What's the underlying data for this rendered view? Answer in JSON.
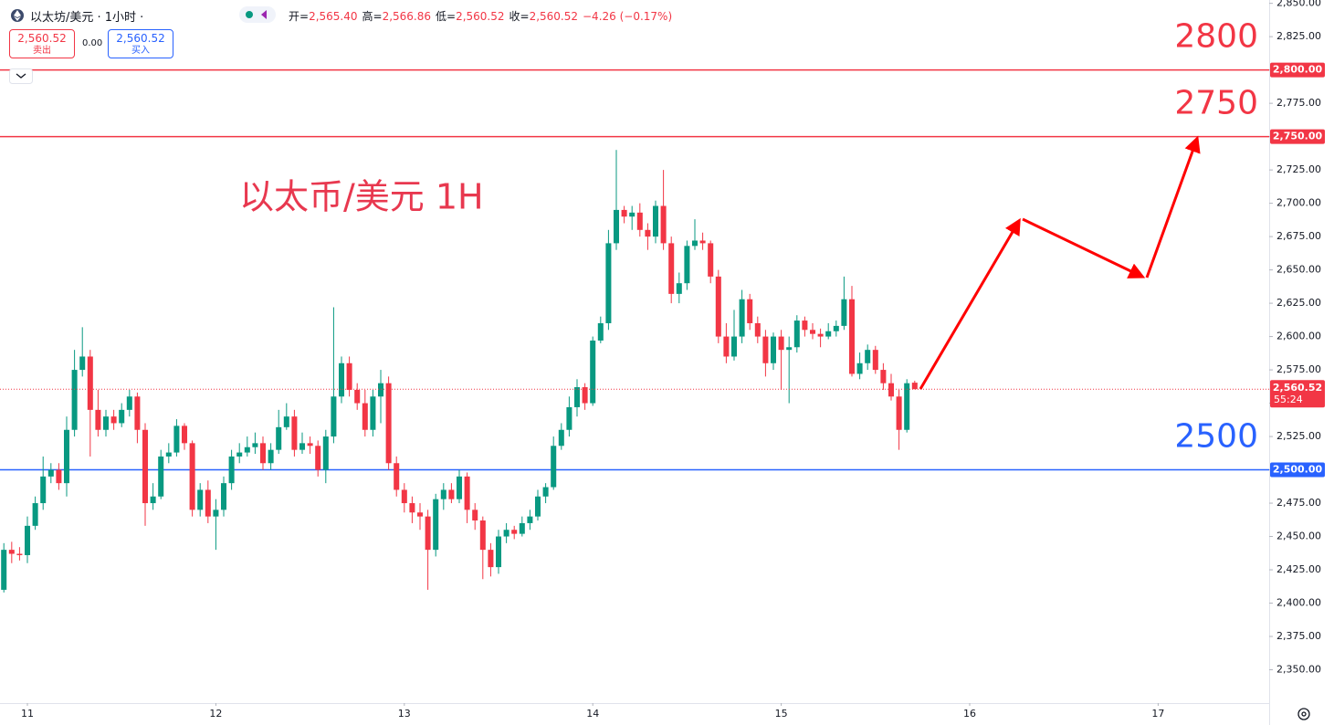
{
  "header": {
    "symbol": "以太坊/美元 · 1小时 ·",
    "ohlc": [
      {
        "label": "开=",
        "value": "2,565.40"
      },
      {
        "label": "高=",
        "value": "2,566.86"
      },
      {
        "label": "低=",
        "value": "2,560.52"
      },
      {
        "label": "收=",
        "value": "2,560.52"
      }
    ],
    "change": "−4.26 (−0.17%)",
    "sell_price": "2,560.52",
    "sell_label": "卖出",
    "spread": "0.00",
    "buy_price": "2,560.52",
    "buy_label": "买入"
  },
  "chart_data": {
    "type": "candlestick",
    "annotation": "以太币/美元 1H",
    "x": [
      -3,
      -2,
      -1,
      0,
      1,
      2,
      3,
      4,
      5,
      6,
      7,
      8,
      9,
      10,
      11,
      12,
      13,
      14,
      15,
      16,
      17,
      18,
      19,
      20,
      21,
      22,
      23,
      24,
      25,
      26,
      27,
      28,
      29,
      30,
      31,
      32,
      33,
      34,
      35,
      36,
      37,
      38,
      39,
      40,
      41,
      42,
      43,
      44,
      45,
      46,
      47,
      48,
      49,
      50,
      51,
      52,
      53,
      54,
      55,
      56,
      57,
      58,
      59,
      60,
      61,
      62,
      63,
      64,
      65,
      66,
      67,
      68,
      69,
      70,
      71,
      72,
      73,
      74,
      75,
      76,
      77,
      78,
      79,
      80,
      81,
      82,
      83,
      84,
      85,
      86,
      87,
      88,
      89,
      90,
      91,
      92,
      93,
      94,
      95,
      96,
      97,
      98,
      99,
      100,
      101,
      102,
      103,
      104,
      105,
      106,
      107,
      108,
      109,
      110,
      111,
      112,
      113
    ],
    "open": [
      2410,
      2440,
      2437,
      2436,
      2458,
      2475,
      2495,
      2500,
      2490,
      2530,
      2575,
      2585,
      2545,
      2530,
      2540,
      2535,
      2545,
      2555,
      2530,
      2475,
      2480,
      2510,
      2513,
      2533,
      2520,
      2470,
      2485,
      2465,
      2470,
      2490,
      2510,
      2513,
      2517,
      2520,
      2505,
      2515,
      2532,
      2540,
      2515,
      2520,
      2518,
      2500,
      2525,
      2555,
      2580,
      2560,
      2550,
      2530,
      2555,
      2565,
      2505,
      2485,
      2475,
      2468,
      2465,
      2440,
      2478,
      2485,
      2478,
      2495,
      2470,
      2462,
      2440,
      2427,
      2450,
      2455,
      2452,
      2460,
      2465,
      2480,
      2487,
      2518,
      2530,
      2547,
      2562,
      2550,
      2597,
      2610,
      2670,
      2695,
      2690,
      2693,
      2680,
      2675,
      2698,
      2670,
      2632,
      2640,
      2668,
      2672,
      2670,
      2645,
      2600,
      2585,
      2600,
      2628,
      2610,
      2600,
      2580,
      2600,
      2590,
      2592,
      2612,
      2605,
      2602,
      2600,
      2604,
      2608,
      2628,
      2572,
      2580,
      2590,
      2575,
      2565,
      2555,
      2530,
      2565.4
    ],
    "high": [
      2445,
      2446,
      2442,
      2465,
      2480,
      2510,
      2505,
      2505,
      2540,
      2590,
      2607,
      2590,
      2560,
      2545,
      2545,
      2550,
      2560,
      2558,
      2535,
      2490,
      2515,
      2520,
      2538,
      2535,
      2522,
      2490,
      2492,
      2478,
      2495,
      2515,
      2520,
      2525,
      2528,
      2525,
      2520,
      2545,
      2550,
      2545,
      2528,
      2525,
      2522,
      2530,
      2622,
      2585,
      2585,
      2565,
      2560,
      2560,
      2575,
      2570,
      2510,
      2490,
      2480,
      2475,
      2470,
      2482,
      2490,
      2490,
      2500,
      2498,
      2475,
      2465,
      2445,
      2455,
      2460,
      2458,
      2465,
      2470,
      2485,
      2490,
      2525,
      2535,
      2555,
      2568,
      2565,
      2600,
      2615,
      2680,
      2740,
      2698,
      2698,
      2700,
      2685,
      2702,
      2725,
      2675,
      2648,
      2672,
      2688,
      2678,
      2672,
      2650,
      2610,
      2620,
      2635,
      2632,
      2615,
      2605,
      2603,
      2605,
      2600,
      2616,
      2615,
      2610,
      2606,
      2610,
      2612,
      2645,
      2638,
      2588,
      2594,
      2593,
      2580,
      2572,
      2560,
      2568,
      2566.86
    ],
    "low": [
      2408,
      2430,
      2432,
      2430,
      2455,
      2470,
      2490,
      2485,
      2480,
      2525,
      2570,
      2510,
      2525,
      2525,
      2530,
      2532,
      2540,
      2520,
      2458,
      2470,
      2478,
      2505,
      2510,
      2515,
      2465,
      2465,
      2460,
      2440,
      2465,
      2485,
      2505,
      2510,
      2512,
      2500,
      2500,
      2512,
      2530,
      2510,
      2512,
      2512,
      2495,
      2490,
      2520,
      2550,
      2555,
      2545,
      2525,
      2525,
      2535,
      2500,
      2480,
      2468,
      2460,
      2455,
      2410,
      2435,
      2470,
      2475,
      2475,
      2460,
      2455,
      2418,
      2420,
      2422,
      2445,
      2448,
      2450,
      2455,
      2462,
      2475,
      2485,
      2515,
      2525,
      2540,
      2545,
      2548,
      2595,
      2605,
      2665,
      2685,
      2680,
      2675,
      2665,
      2670,
      2665,
      2625,
      2625,
      2635,
      2665,
      2665,
      2640,
      2595,
      2580,
      2582,
      2595,
      2605,
      2595,
      2570,
      2575,
      2560,
      2550,
      2588,
      2600,
      2598,
      2592,
      2598,
      2600,
      2605,
      2570,
      2568,
      2575,
      2572,
      2560,
      2552,
      2515,
      2528,
      2560.52
    ],
    "close": [
      2440,
      2437,
      2436,
      2458,
      2475,
      2495,
      2500,
      2490,
      2530,
      2575,
      2585,
      2545,
      2530,
      2540,
      2535,
      2545,
      2555,
      2530,
      2475,
      2480,
      2510,
      2513,
      2533,
      2520,
      2470,
      2485,
      2465,
      2470,
      2490,
      2510,
      2513,
      2517,
      2520,
      2505,
      2515,
      2532,
      2540,
      2515,
      2520,
      2518,
      2500,
      2525,
      2555,
      2580,
      2560,
      2550,
      2530,
      2555,
      2565,
      2505,
      2485,
      2475,
      2468,
      2465,
      2440,
      2478,
      2485,
      2478,
      2495,
      2470,
      2462,
      2440,
      2427,
      2450,
      2455,
      2452,
      2460,
      2465,
      2480,
      2487,
      2518,
      2530,
      2547,
      2562,
      2550,
      2597,
      2610,
      2670,
      2695,
      2690,
      2693,
      2680,
      2675,
      2698,
      2670,
      2632,
      2640,
      2668,
      2672,
      2670,
      2645,
      2600,
      2585,
      2600,
      2628,
      2610,
      2600,
      2580,
      2600,
      2590,
      2592,
      2612,
      2605,
      2602,
      2600,
      2604,
      2608,
      2628,
      2572,
      2580,
      2590,
      2575,
      2565,
      2555,
      2530,
      2565,
      2560.52
    ],
    "up_color": "#089981",
    "down_color": "#f23645",
    "xlim": [
      -3.49,
      158.14
    ],
    "xticks": [
      {
        "value": 0,
        "label": "11"
      },
      {
        "value": 24,
        "label": "12"
      },
      {
        "value": 48,
        "label": "13"
      },
      {
        "value": 72,
        "label": "14"
      },
      {
        "value": 96,
        "label": "15"
      },
      {
        "value": 120,
        "label": "16"
      },
      {
        "value": 144,
        "label": "17"
      }
    ],
    "ylim": [
      2325,
      2852.5
    ],
    "yticks": [
      {
        "value": 2350,
        "label": "2,350.00"
      },
      {
        "value": 2375,
        "label": "2,375.00"
      },
      {
        "value": 2400,
        "label": "2,400.00"
      },
      {
        "value": 2425,
        "label": "2,425.00"
      },
      {
        "value": 2450,
        "label": "2,450.00"
      },
      {
        "value": 2475,
        "label": "2,475.00"
      },
      {
        "value": 2500,
        "label": "2,500.00"
      },
      {
        "value": 2525,
        "label": "2,525.00"
      },
      {
        "value": 2550,
        "label": "2,550.00"
      },
      {
        "value": 2575,
        "label": "2,575.00"
      },
      {
        "value": 2600,
        "label": "2,600.00"
      },
      {
        "value": 2625,
        "label": "2,625.00"
      },
      {
        "value": 2650,
        "label": "2,650.00"
      },
      {
        "value": 2675,
        "label": "2,675.00"
      },
      {
        "value": 2700,
        "label": "2,700.00"
      },
      {
        "value": 2725,
        "label": "2,725.00"
      },
      {
        "value": 2750,
        "label": "2,750.00"
      },
      {
        "value": 2775,
        "label": "2,775.00"
      },
      {
        "value": 2800,
        "label": "2,800.00"
      },
      {
        "value": 2825,
        "label": "2,825.00"
      },
      {
        "value": 2850,
        "label": "2,850.00"
      }
    ],
    "grid": false,
    "levels": [
      {
        "value": 2800,
        "label": "2800",
        "tag": "2,800.00",
        "color": "#f23645"
      },
      {
        "value": 2750,
        "label": "2750",
        "tag": "2,750.00",
        "color": "#f23645"
      },
      {
        "value": 2500,
        "label": "2500",
        "tag": "2,500.00",
        "color": "#2962ff"
      }
    ],
    "last_price": {
      "value": 2560.52,
      "label": "2,560.52",
      "countdown": "55:24",
      "color": "#f23645"
    }
  }
}
